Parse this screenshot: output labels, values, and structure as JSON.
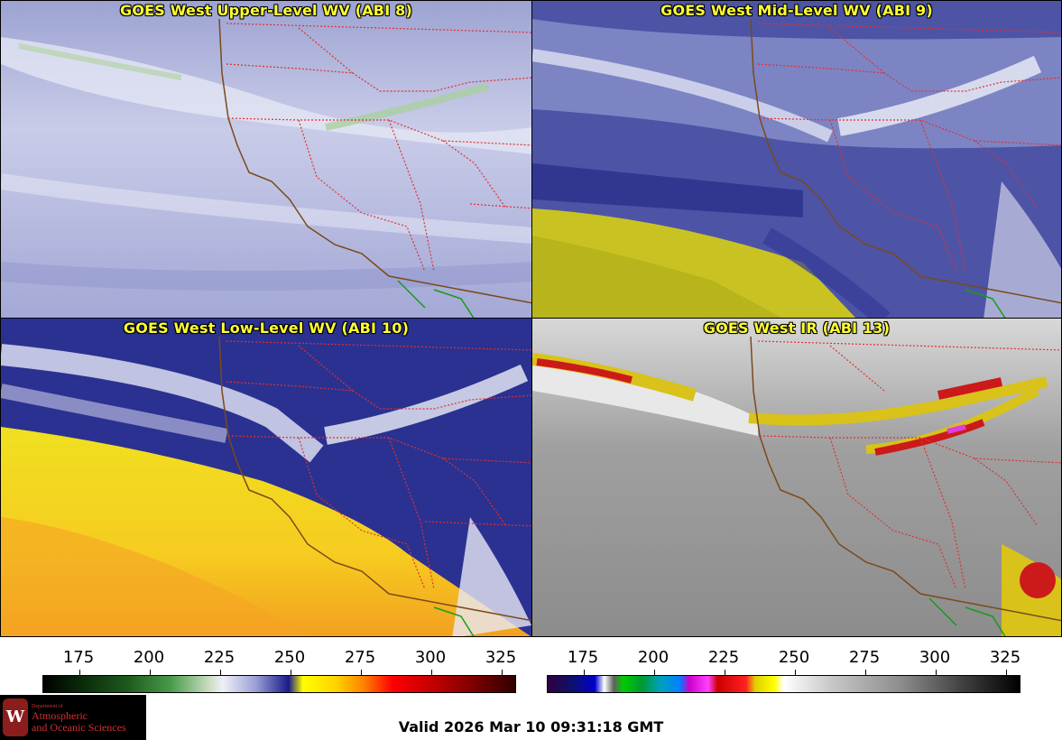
{
  "panels": {
    "upper": {
      "title": "GOES West Upper-Level WV (ABI 8)"
    },
    "mid": {
      "title": "GOES West Mid-Level WV (ABI 9)"
    },
    "low": {
      "title": "GOES West Low-Level WV (ABI 10)"
    },
    "ir": {
      "title": "GOES West IR (ABI 13)"
    }
  },
  "colorbars": {
    "wv": {
      "labels": [
        "175",
        "200",
        "225",
        "250",
        "275",
        "300",
        "325"
      ]
    },
    "ir": {
      "labels": [
        "175",
        "200",
        "225",
        "250",
        "275",
        "300",
        "325"
      ]
    }
  },
  "logo": {
    "seal_letter": "W",
    "dept": "Department of",
    "line1": "Atmospheric",
    "line2": "and Oceanic Sciences"
  },
  "valid_time": "Valid 2026 Mar 10 09:31:18 GMT",
  "colors": {
    "title_text": "#ffff33",
    "coast": "#7a4a1a",
    "state_border": "#e03030",
    "mexico_border": "#1a9a1a"
  }
}
